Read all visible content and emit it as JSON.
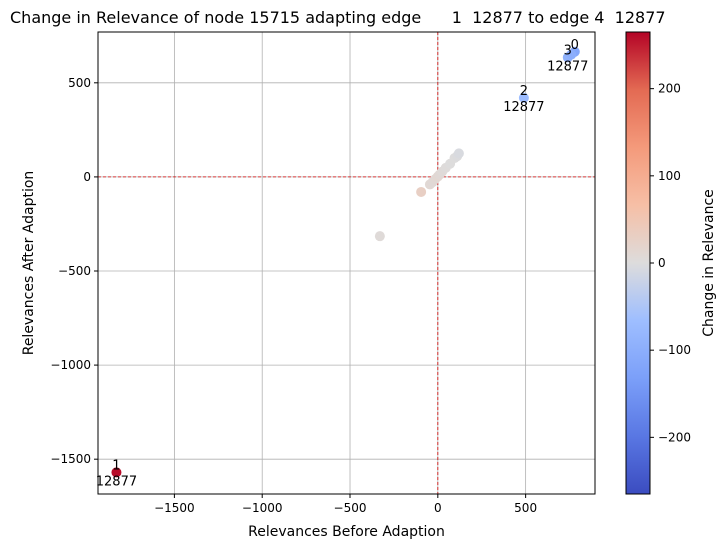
{
  "chart_data": {
    "type": "scatter",
    "title": "Change in Relevance of node 15715 adapting edge      1  12877 to edge 4  12877",
    "xlabel": "Relevances Before Adaption",
    "ylabel": "Relevances After Adaption",
    "xlim": [
      -1935,
      895
    ],
    "ylim": [
      -1685,
      770
    ],
    "xticks": [
      -1500,
      -1000,
      -500,
      0,
      500
    ],
    "xtick_labels": [
      "−1500",
      "−1000",
      "−500",
      "0",
      "500"
    ],
    "yticks": [
      -1500,
      -1000,
      -500,
      0,
      500
    ],
    "ytick_labels": [
      "−1500",
      "−1000",
      "−500",
      "0",
      "500"
    ],
    "grid": true,
    "reference_lines": {
      "x": 0,
      "y": 0,
      "color": "#cc0000",
      "style": "dashed"
    },
    "colorbar": {
      "label": "Change in Relevance",
      "range": [
        -265,
        265
      ],
      "colormap": "coolwarm",
      "ticks": [
        -200,
        -100,
        0,
        100,
        200
      ],
      "tick_labels": [
        "−200",
        "−100",
        "0",
        "100",
        "200"
      ]
    },
    "points": [
      {
        "x": -1830,
        "y": -1570,
        "change": 260,
        "label": "1\n12877"
      },
      {
        "x": 490,
        "y": 420,
        "change": -70,
        "label": "2\n12877"
      },
      {
        "x": 780,
        "y": 665,
        "change": -115,
        "label": "0"
      },
      {
        "x": 740,
        "y": 635,
        "change": -95,
        "label": "3\n12877"
      },
      {
        "x": 760,
        "y": 650,
        "change": -100,
        "label": ""
      },
      {
        "x": -330,
        "y": -315,
        "change": 5,
        "label": ""
      },
      {
        "x": -95,
        "y": -80,
        "change": 30,
        "label": ""
      },
      {
        "x": -45,
        "y": -40,
        "change": 10,
        "label": ""
      },
      {
        "x": -30,
        "y": -28,
        "change": 8,
        "label": ""
      },
      {
        "x": -15,
        "y": -12,
        "change": 10,
        "label": ""
      },
      {
        "x": 0,
        "y": 2,
        "change": 12,
        "label": ""
      },
      {
        "x": 10,
        "y": 12,
        "change": 8,
        "label": ""
      },
      {
        "x": 25,
        "y": 28,
        "change": 5,
        "label": ""
      },
      {
        "x": 45,
        "y": 48,
        "change": 3,
        "label": ""
      },
      {
        "x": 70,
        "y": 70,
        "change": 0,
        "label": ""
      },
      {
        "x": 95,
        "y": 100,
        "change": 0,
        "label": ""
      },
      {
        "x": 110,
        "y": 110,
        "change": -2,
        "label": ""
      },
      {
        "x": 120,
        "y": 125,
        "change": -5,
        "label": ""
      }
    ]
  }
}
